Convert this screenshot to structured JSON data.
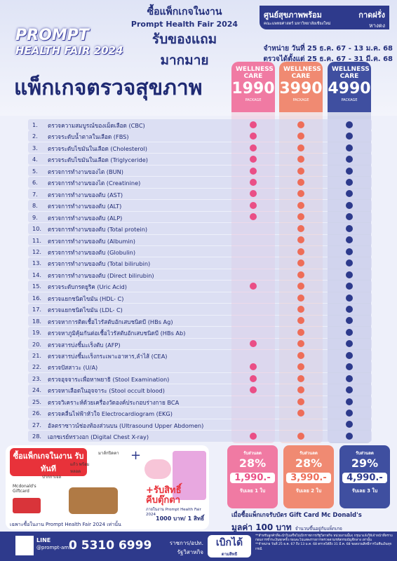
{
  "header": {
    "logo": [
      "PROMPT",
      "HEALTH FAIR 2024"
    ],
    "headline": [
      "ซื้อแพ็กเกจในงาน",
      "Prompt Health Fair 2024",
      "รับของแถม",
      "มากมาย"
    ],
    "org": {
      "name": "ศูนย์สุขภาพพร้อม",
      "sub": "คณะแพทยศาสตร์ มหาวิทยาลัยเชียงใหม่",
      "branch": [
        "กาดฝรั่ง",
        "หางดง"
      ]
    },
    "dates": [
      "จำหน่าย วันที่ 25 ธ.ค. 67 - 13 ม.ค. 68",
      "ตรวจได้ตั้งแต่ 25 ธ.ค. 67 - 31 มี.ค. 68"
    ],
    "title": "แพ็กเกจตรวจสุขภาพ"
  },
  "packages": [
    {
      "name": "WELLNESS CARE",
      "price": "1990",
      "tag": "PACKAGE",
      "color": "#f07aa3",
      "dot": "#ea4f86"
    },
    {
      "name": "WELLNESS CARE",
      "price": "3990",
      "tag": "PACKAGE",
      "color": "#f08a72",
      "dot": "#ee6d58"
    },
    {
      "name": "WELLNESS CARE",
      "price": "4990",
      "tag": "PACKAGE",
      "color": "#3f4fa0",
      "dot": "#2d3a8c"
    }
  ],
  "items": [
    {
      "no": "1.",
      "name": "ตรวจความสมบูรณ์ของเม็ดเลือด (CBC)",
      "included": [
        true,
        true,
        true
      ]
    },
    {
      "no": "2.",
      "name": "ตรวจระดับน้ำตาลในเลือด (FBS)",
      "included": [
        true,
        true,
        true
      ]
    },
    {
      "no": "3.",
      "name": "ตรวจระดับไขมันในเลือด (Cholesterol)",
      "included": [
        true,
        true,
        true
      ]
    },
    {
      "no": "4.",
      "name": "ตรวจระดับไขมันในเลือด (Triglyceride)",
      "included": [
        true,
        true,
        true
      ]
    },
    {
      "no": "5.",
      "name": "ตรวจการทำงานของไต (BUN)",
      "included": [
        true,
        true,
        true
      ]
    },
    {
      "no": "6.",
      "name": "ตรวจการทำงานของไต (Creatinine)",
      "included": [
        true,
        true,
        true
      ]
    },
    {
      "no": "7.",
      "name": "ตรวจการทำงานของตับ (AST)",
      "included": [
        true,
        true,
        true
      ]
    },
    {
      "no": "8.",
      "name": "ตรวจการทำงานของตับ (ALT)",
      "included": [
        true,
        true,
        true
      ]
    },
    {
      "no": "9.",
      "name": "ตรวจการทำงานของตับ (ALP)",
      "included": [
        true,
        true,
        true
      ]
    },
    {
      "no": "10.",
      "name": "ตรวจการทำงานของตับ (Total protein)",
      "included": [
        false,
        true,
        true
      ]
    },
    {
      "no": "11.",
      "name": "ตรวจการทำงานของตับ (Albumin)",
      "included": [
        false,
        true,
        true
      ]
    },
    {
      "no": "12.",
      "name": "ตรวจการทำงานของตับ (Globulin)",
      "included": [
        false,
        true,
        true
      ]
    },
    {
      "no": "13.",
      "name": "ตรวจการทำงานของตับ (Total bilirubin)",
      "included": [
        false,
        true,
        true
      ]
    },
    {
      "no": "14.",
      "name": "ตรวจการทำงานของตับ (Direct bilirubin)",
      "included": [
        false,
        true,
        true
      ]
    },
    {
      "no": "15.",
      "name": "ตรวจระดับกรดยูริค (Uric Acid)",
      "included": [
        true,
        true,
        true
      ]
    },
    {
      "no": "16.",
      "name": "ตรวจแยกชนิดไขมัน (HDL- C)",
      "included": [
        false,
        true,
        true
      ]
    },
    {
      "no": "17.",
      "name": "ตรวจแยกชนิดไขมัน (LDL- C)",
      "included": [
        false,
        true,
        true
      ]
    },
    {
      "no": "18.",
      "name": "ตรวจหาการติดเชื้อไวรัสตับอักเสบชนิดบี (HBs Ag)",
      "included": [
        false,
        true,
        true
      ]
    },
    {
      "no": "19.",
      "name": "ตรวจหาภูมิคุ้มกันต่อเชื้อไวรัสตับอักเสบชนิดบี (HBs Ab)",
      "included": [
        false,
        true,
        true
      ]
    },
    {
      "no": "20.",
      "name": "ตรวจสารบ่งชี้มะเร็งตับ (AFP)",
      "included": [
        true,
        true,
        true
      ]
    },
    {
      "no": "21.",
      "name": "ตรวจสารบ่งชี้มะเร็งกระเพาะอาหาร,ลำไส้ (CEA)",
      "included": [
        false,
        true,
        true
      ]
    },
    {
      "no": "22.",
      "name": "ตรวจปัสสาวะ (U/A)",
      "included": [
        true,
        true,
        true
      ]
    },
    {
      "no": "23.",
      "name": "ตรวจอุจจาระเพื่อหาพยาธิ (Stool Examination)",
      "included": [
        true,
        true,
        true
      ]
    },
    {
      "no": "24.",
      "name": "ตรวจหาเลือดในอุจจาระ (Stool occult blood)",
      "included": [
        true,
        true,
        true
      ]
    },
    {
      "no": "25.",
      "name": "ตรวจวิเคราะห์ด้วยเครื่องวัดองค์ประกอบร่างกาย BCA",
      "included": [
        false,
        true,
        true
      ]
    },
    {
      "no": "26.",
      "name": "ตรวจคลื่นไฟฟ้าหัวใจ Electrocardiogram (EKG)",
      "included": [
        false,
        true,
        true
      ]
    },
    {
      "no": "27.",
      "name": "อัลตราซาวน์ช่องท้องส่วนบน (Ultrasound Upper Abdomen)",
      "included": [
        false,
        false,
        true
      ]
    },
    {
      "no": "28.",
      "name": "เอกซเรย์ทรวงอก (Digital Chest X-ray)",
      "included": [
        true,
        true,
        true
      ]
    }
  ],
  "gifts": {
    "headline": "ซื้อแพ็กเกจในงาน รับทันที",
    "items": [
      "มาส์กปิดตา",
      "แก้ว พร้อมหลอด",
      "ปากกาเจล",
      "Mcdonald's Giftcard"
    ],
    "note": "เฉพาะซื้อในงาน Prompt Health Fair 2024 เท่านั้น",
    "claw": [
      "+รับสิทธิ์ คีบตุ๊กตา",
      "ภายในงาน Prompt Health Fair 2024",
      "1000 บาท/ 1 สิทธิ์"
    ]
  },
  "discounts": {
    "cards": [
      {
        "label": "รับส่วนลด",
        "percent": "28%",
        "price": "1,990.-",
        "get": "รับเลย 1 ใบ"
      },
      {
        "label": "รับส่วนลด",
        "percent": "28%",
        "price": "3,990.-",
        "get": "รับเลย 2 ใบ"
      },
      {
        "label": "รับส่วนลด",
        "percent": "29%",
        "price": "4,990.-",
        "get": "รับเลย 3 ใบ"
      }
    ],
    "note": [
      "เมื่อซื้อแพ็กเกจรับบัตร Gift Card Mc Donald's",
      "มูลค่า 100 บาท",
      "จำนวนขึ้นอยู่กับแพ็กเกจ"
    ]
  },
  "footer": {
    "line": [
      "LINE",
      "@prompt-ams"
    ],
    "phone": "0 5310 6999",
    "claim": [
      "ราชการ/อปท. รัฐวิสาหกิจ",
      "เบิกได้",
      "ตามสิทธิ"
    ],
    "fine": [
      "**สำหรับลูกค้าที่จะนำใบเสร็จไปเบิกราชการ/รัฐวิสาหกิจ หน่วยงานนั้นๆ กรุณาแจ้งให้เจ้าหน้าที่ทราบก่อนการชำระเงินทุกครั้ง ก่อนจะไปแสดงรายการตรวจตามรหัสกรมบัญชีกลาง เท่านั้น",
      "**จำหน่าย วันที่ 25 ธ.ค. 67 ถึง 13 ม.ค. 68 ตรวจได้ถึง 31 มี.ค. 68 ขอสงวนสิทธิ์การไม่คืนเงินทุกกรณี"
    ]
  }
}
